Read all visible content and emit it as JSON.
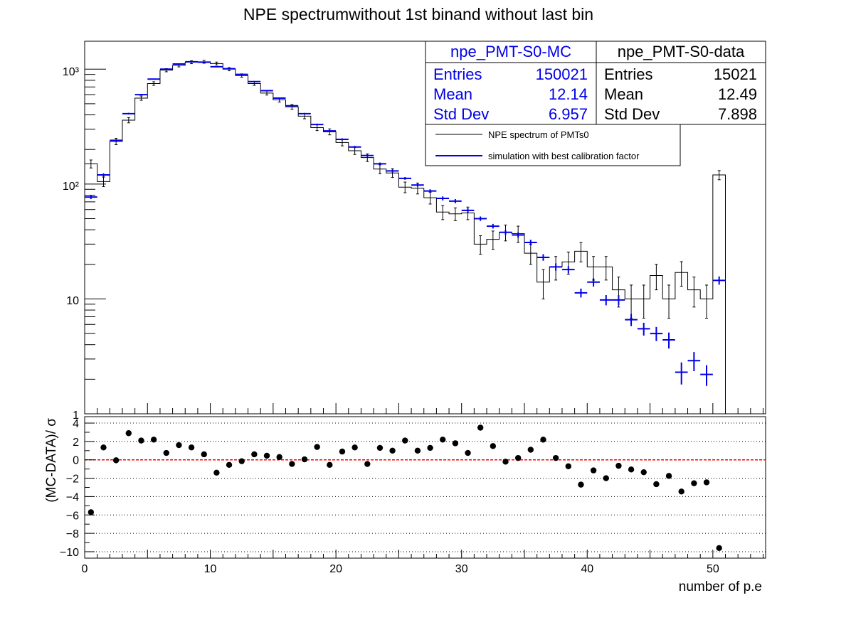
{
  "title": "NPE spectrumwithout 1st binand without last bin",
  "colors": {
    "mc": "#0000e6",
    "data": "#000000",
    "zero_line": "#ff0000"
  },
  "top_axis": {
    "scale": "log",
    "ylim": [
      1,
      1750
    ],
    "tick_labels": [
      "1",
      "10",
      "10²",
      "10³"
    ],
    "tick_values": [
      1,
      10,
      100,
      1000
    ]
  },
  "bottom_axis": {
    "ylabel": "(MC-DATA)/ σ",
    "xlabel": "number of p.e",
    "ylim": [
      -10.7,
      4.7
    ],
    "xlim": [
      0,
      54.2
    ],
    "y_tick_labels": [
      "4",
      "2",
      "0",
      "−2",
      "−4",
      "−6",
      "−8",
      "−10"
    ],
    "y_tick_values": [
      4,
      2,
      0,
      -2,
      -4,
      -6,
      -8,
      -10
    ],
    "x_tick_labels": [
      "0",
      "10",
      "20",
      "30",
      "40",
      "50"
    ],
    "x_tick_values": [
      0,
      10,
      20,
      30,
      40,
      50
    ]
  },
  "stats_mc": {
    "name": "npe_PMT-S0-MC",
    "entries_label": "Entries",
    "entries": "150021",
    "mean_label": "Mean",
    "mean": "12.14",
    "std_label": "Std Dev",
    "std": "6.957"
  },
  "stats_data": {
    "name": "npe_PMT-S0-data",
    "entries_label": "Entries",
    "entries": "15021",
    "mean_label": "Mean",
    "mean": "12.49",
    "std_label": "Std Dev",
    "std": "7.898"
  },
  "legend": {
    "placement": "top-right",
    "entries": [
      {
        "label": "NPE spectrum of PMTs0",
        "color": "#000000"
      },
      {
        "label": "simulation with best calibration factor",
        "color": "#0000e6"
      }
    ]
  },
  "chart_data": [
    {
      "type": "line",
      "series": [
        {
          "name": "NPE spectrum of PMTs0",
          "x": [
            0.5,
            1.5,
            2.5,
            3.5,
            4.5,
            5.5,
            6.5,
            7.5,
            8.5,
            9.5,
            10.5,
            11.5,
            12.5,
            13.5,
            14.5,
            15.5,
            16.5,
            17.5,
            18.5,
            19.5,
            20.5,
            21.5,
            22.5,
            23.5,
            24.5,
            25.5,
            26.5,
            27.5,
            28.5,
            29.5,
            30.5,
            31.5,
            32.5,
            33.5,
            34.5,
            35.5,
            36.5,
            37.5,
            38.5,
            39.5,
            40.5,
            41.5,
            42.5,
            43.5,
            44.5,
            45.5,
            46.5,
            47.5,
            48.5,
            49.5,
            50.5
          ],
          "values": [
            150,
            105,
            235,
            360,
            560,
            750,
            980,
            1080,
            1150,
            1160,
            1120,
            1000,
            880,
            750,
            620,
            540,
            470,
            390,
            310,
            285,
            230,
            195,
            170,
            135,
            125,
            94,
            92,
            76,
            57,
            55,
            56,
            30,
            33,
            38,
            37,
            25,
            14,
            19,
            21,
            26,
            19,
            19,
            12,
            10,
            10,
            16,
            10,
            17,
            12,
            10,
            120
          ],
          "errors": [
            12,
            10,
            15,
            19,
            24,
            27,
            31,
            33,
            34,
            34,
            33,
            32,
            30,
            27,
            25,
            23,
            22,
            20,
            18,
            17,
            15,
            14,
            13,
            12,
            11,
            10,
            10,
            9,
            8,
            7,
            7,
            5.5,
            6,
            6,
            6,
            5,
            4,
            4.4,
            4.6,
            5,
            4.4,
            4.4,
            3.5,
            3.2,
            3.2,
            4,
            3.2,
            4.1,
            3.5,
            3.2,
            11
          ]
        },
        {
          "name": "simulation with best calibration factor",
          "x": [
            0.5,
            1.5,
            2.5,
            3.5,
            4.5,
            5.5,
            6.5,
            7.5,
            8.5,
            9.5,
            10.5,
            11.5,
            12.5,
            13.5,
            14.5,
            15.5,
            16.5,
            17.5,
            18.5,
            19.5,
            20.5,
            21.5,
            22.5,
            23.5,
            24.5,
            25.5,
            26.5,
            27.5,
            28.5,
            29.5,
            30.5,
            31.5,
            32.5,
            33.5,
            34.5,
            35.5,
            36.5,
            37.5,
            38.5,
            39.5,
            40.5,
            41.5,
            42.5,
            43.5,
            44.5,
            45.5,
            46.5,
            47.5,
            48.5,
            49.5,
            50.5
          ],
          "values": [
            77,
            120,
            240,
            410,
            600,
            820,
            1000,
            1110,
            1160,
            1150,
            1050,
            1010,
            900,
            780,
            650,
            560,
            480,
            410,
            330,
            290,
            245,
            210,
            177,
            150,
            130,
            112,
            98,
            87,
            75,
            71,
            59,
            50,
            43,
            38,
            36,
            31,
            23,
            19,
            18,
            11.3,
            14,
            9.8,
            9.8,
            6.6,
            5.5,
            5,
            4.4,
            2.3,
            2.9,
            2.2,
            14.5
          ],
          "errors": [
            3,
            4,
            5,
            7,
            8,
            9,
            10,
            11,
            11,
            11,
            10,
            10,
            10,
            9,
            8,
            8,
            7,
            6,
            6,
            5,
            5,
            5,
            4,
            4,
            4,
            3,
            3,
            3,
            3,
            3,
            2.5,
            2.2,
            2,
            1.9,
            1.9,
            1.7,
            1.5,
            1.4,
            1.3,
            1,
            1.2,
            1,
            1,
            0.8,
            0.7,
            0.7,
            0.7,
            0.5,
            0.55,
            0.45,
            1.2
          ]
        }
      ],
      "xlim": [
        0,
        54.2
      ],
      "ylim": [
        1,
        1750
      ],
      "yscale": "log"
    },
    {
      "type": "scatter",
      "name": "(MC-DATA)/ σ",
      "x": [
        0.5,
        1.5,
        2.5,
        3.5,
        4.5,
        5.5,
        6.5,
        7.5,
        8.5,
        9.5,
        10.5,
        11.5,
        12.5,
        13.5,
        14.5,
        15.5,
        16.5,
        17.5,
        18.5,
        19.5,
        20.5,
        21.5,
        22.5,
        23.5,
        24.5,
        25.5,
        26.5,
        27.5,
        28.5,
        29.5,
        30.5,
        31.5,
        32.5,
        33.5,
        34.5,
        35.5,
        36.5,
        37.5,
        38.5,
        39.5,
        40.5,
        41.5,
        42.5,
        43.5,
        44.5,
        45.5,
        46.5,
        47.5,
        48.5,
        49.5,
        50.5
      ],
      "values": [
        -5.7,
        1.35,
        -0.05,
        2.9,
        2.1,
        2.2,
        0.75,
        1.6,
        1.35,
        0.6,
        -1.4,
        -0.55,
        -0.15,
        0.6,
        0.45,
        0.3,
        -0.45,
        0.05,
        1.4,
        -0.55,
        0.9,
        1.35,
        -0.45,
        1.3,
        1.0,
        2.1,
        1.0,
        1.3,
        2.2,
        1.8,
        0.75,
        3.5,
        1.5,
        -0.2,
        0.2,
        1.1,
        2.2,
        0.2,
        -0.7,
        -2.7,
        -1.15,
        -2.0,
        -0.65,
        -1.05,
        -1.35,
        -2.65,
        -1.75,
        -3.45,
        -2.55,
        -2.45,
        -9.6
      ],
      "xlim": [
        0,
        54.2
      ],
      "ylim": [
        -10.7,
        4.7
      ],
      "grid": true,
      "reference_line": 0
    }
  ]
}
